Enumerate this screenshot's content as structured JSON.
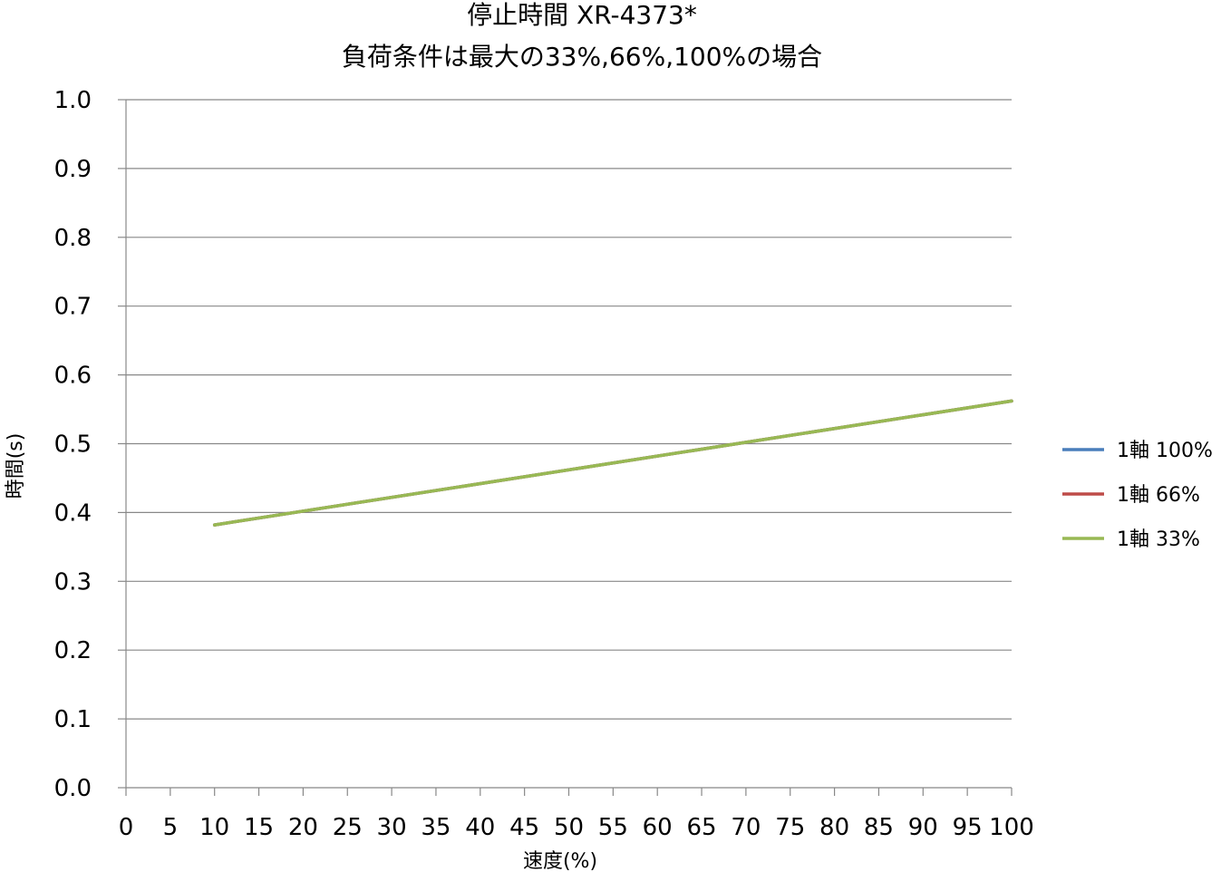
{
  "chart_data": {
    "type": "line",
    "title_lines": [
      "停止時間 XR-4373*",
      "負荷条件は最大の33%,66%,100%の場合"
    ],
    "xlabel": "速度(%)",
    "ylabel": "時間(s)",
    "xlim": [
      0,
      100
    ],
    "ylim": [
      0.0,
      1.0
    ],
    "x_ticks": [
      0,
      5,
      10,
      15,
      20,
      25,
      30,
      35,
      40,
      45,
      50,
      55,
      60,
      65,
      70,
      75,
      80,
      85,
      90,
      95,
      100
    ],
    "x_tick_labels": [
      "0",
      "5",
      "10",
      "15",
      "20",
      "25",
      "30",
      "35",
      "40",
      "45",
      "50",
      "55",
      "60",
      "65",
      "70",
      "75",
      "80",
      "85",
      "90",
      "95",
      "100"
    ],
    "y_ticks": [
      0.0,
      0.1,
      0.2,
      0.3,
      0.4,
      0.5,
      0.6,
      0.7,
      0.8,
      0.9,
      1.0
    ],
    "y_tick_labels": [
      "0.0",
      "0.1",
      "0.2",
      "0.3",
      "0.4",
      "0.5",
      "0.6",
      "0.7",
      "0.8",
      "0.9",
      "1.0"
    ],
    "grid": "horizontal",
    "legend_position": "right",
    "series": [
      {
        "name": "1軸 100%",
        "color": "#4a7ebb",
        "x": [
          10,
          100
        ],
        "y": [
          0.382,
          0.562
        ]
      },
      {
        "name": "1軸 66%",
        "color": "#be4b48",
        "x": [
          10,
          100
        ],
        "y": [
          0.382,
          0.562
        ]
      },
      {
        "name": "1軸 33%",
        "color": "#98b954",
        "x": [
          10,
          100
        ],
        "y": [
          0.382,
          0.562
        ]
      }
    ]
  }
}
